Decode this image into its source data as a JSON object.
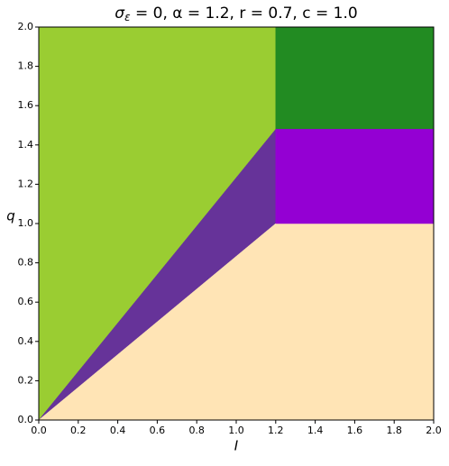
{
  "chart_data": {
    "type": "region",
    "title": {
      "symbol": "σ",
      "subscript": "ε",
      "rest": " = 0, α =  1.2, r =  0.7, c =  1.0"
    },
    "x_label": "I",
    "y_label": "q",
    "xlim": [
      0,
      2
    ],
    "ylim": [
      0,
      2
    ],
    "xticks": [
      {
        "value": 0,
        "label": "0.0"
      },
      0.2,
      0.4,
      0.6,
      0.8,
      {
        "value": 1,
        "label": "1.0"
      },
      1.2,
      1.4,
      1.6,
      1.8,
      {
        "value": 2,
        "label": "2.0"
      }
    ],
    "yticks": [
      {
        "value": 0,
        "label": "0.0"
      },
      0.2,
      0.4,
      0.6,
      0.8,
      {
        "value": 1,
        "label": "1.0"
      },
      1.2,
      1.4,
      1.6,
      1.8,
      {
        "value": 2,
        "label": "2.0"
      }
    ],
    "series": [
      {
        "color": "#9acd32",
        "x": [
          0,
          1.2,
          1.2,
          0
        ],
        "y": [
          0,
          1.48,
          2,
          2
        ]
      },
      {
        "color": "#663399",
        "x": [
          0,
          1.2,
          1.2
        ],
        "y": [
          0,
          1.48,
          1.0
        ]
      },
      {
        "color": "#ffe4b5",
        "x": [
          0,
          1.2,
          2,
          2
        ],
        "y": [
          0,
          1.0,
          1.0,
          0
        ]
      },
      {
        "color": "#228b22",
        "x": [
          1.2,
          2,
          2,
          1.2
        ],
        "y": [
          1.48,
          1.48,
          2,
          2
        ]
      },
      {
        "color": "#9400d3",
        "x": [
          1.2,
          2,
          2,
          1.2
        ],
        "y": [
          1.0,
          1.0,
          1.48,
          1.48
        ]
      }
    ]
  }
}
